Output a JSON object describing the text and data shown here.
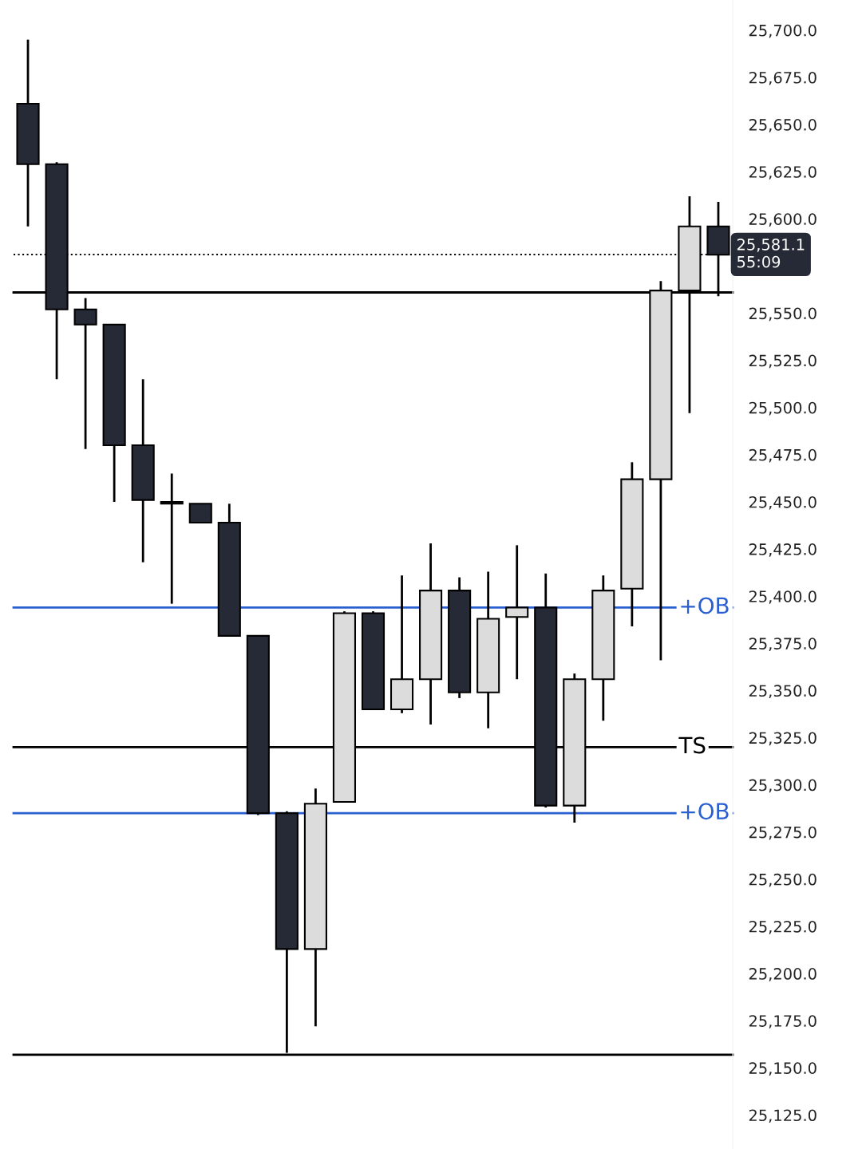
{
  "chart_data": {
    "type": "candlestick",
    "categories": [
      null,
      null,
      null,
      null,
      null,
      null,
      null,
      null,
      null,
      null,
      null,
      null,
      null,
      null,
      null,
      null,
      null,
      null,
      null,
      null,
      null,
      null,
      null,
      null,
      null
    ],
    "ohlc": [
      [
        25661,
        25695,
        25596,
        25629
      ],
      [
        25629,
        25630,
        25515,
        25552
      ],
      [
        25552,
        25558,
        25478,
        25544
      ],
      [
        25544,
        25544,
        25450,
        25480
      ],
      [
        25480,
        25515,
        25418,
        25451
      ],
      [
        25450,
        25465,
        25396,
        25449
      ],
      [
        25449,
        25449,
        25439,
        25439
      ],
      [
        25439,
        25449,
        25379,
        25379
      ],
      [
        25379,
        25379,
        25284,
        25285
      ],
      [
        25285,
        25286,
        25158,
        25213
      ],
      [
        25213,
        25298,
        25172,
        25290
      ],
      [
        25291,
        25392,
        25291,
        25391
      ],
      [
        25391,
        25392,
        25340,
        25340
      ],
      [
        25340,
        25411,
        25338,
        25356
      ],
      [
        25356,
        25428,
        25332,
        25403
      ],
      [
        25403,
        25410,
        25346,
        25349
      ],
      [
        25349,
        25413,
        25330,
        25388
      ],
      [
        25389,
        25427,
        25356,
        25394
      ],
      [
        25394,
        25412,
        25288,
        25289
      ],
      [
        25289,
        25359,
        25280,
        25356
      ],
      [
        25356,
        25411,
        25334,
        25403
      ],
      [
        25404,
        25471,
        25384,
        25462
      ],
      [
        25462,
        25567,
        25366,
        25562
      ],
      [
        25562,
        25612,
        25497,
        25596
      ],
      [
        25596,
        25609,
        25559,
        25581
      ]
    ],
    "colors": [
      "#262a36",
      "#262a36",
      "#262a36",
      "#262a36",
      "#262a36",
      "#262a36",
      "#262a36",
      "#262a36",
      "#262a36",
      "#262a36",
      "#dcdcdc",
      "#dcdcdc",
      "#262a36",
      "#dcdcdc",
      "#dcdcdc",
      "#262a36",
      "#dcdcdc",
      "#dcdcdc",
      "#262a36",
      "#dcdcdc",
      "#dcdcdc",
      "#dcdcdc",
      "#dcdcdc",
      "#dcdcdc",
      "#262a36"
    ],
    "ylim": [
      25107,
      25716
    ],
    "yticks": [
      {
        "value": 25125,
        "label": "25,125.0"
      },
      {
        "value": 25150,
        "label": "25,150.0"
      },
      {
        "value": 25175,
        "label": "25,175.0"
      },
      {
        "value": 25200,
        "label": "25,200.0"
      },
      {
        "value": 25225,
        "label": "25,225.0"
      },
      {
        "value": 25250,
        "label": "25,250.0"
      },
      {
        "value": 25275,
        "label": "25,275.0"
      },
      {
        "value": 25300,
        "label": "25,300.0"
      },
      {
        "value": 25325,
        "label": "25,325.0"
      },
      {
        "value": 25350,
        "label": "25,350.0"
      },
      {
        "value": 25375,
        "label": "25,375.0"
      },
      {
        "value": 25400,
        "label": "25,400.0"
      },
      {
        "value": 25425,
        "label": "25,425.0"
      },
      {
        "value": 25450,
        "label": "25,450.0"
      },
      {
        "value": 25475,
        "label": "25,475.0"
      },
      {
        "value": 25500,
        "label": "25,500.0"
      },
      {
        "value": 25525,
        "label": "25,525.0"
      },
      {
        "value": 25550,
        "label": "25,550.0"
      },
      {
        "value": 25600,
        "label": "25,600.0"
      },
      {
        "value": 25625,
        "label": "25,625.0"
      },
      {
        "value": 25650,
        "label": "25,650.0"
      },
      {
        "value": 25675,
        "label": "25,675.0"
      },
      {
        "value": 25700,
        "label": "25,700.0"
      }
    ],
    "ref_lines": [
      {
        "axis": "y",
        "value": 25561,
        "color": "#000000",
        "line_style": "solid"
      },
      {
        "axis": "y",
        "value": 25157,
        "color": "#000000",
        "line_style": "solid"
      },
      {
        "axis": "y",
        "value": 25394,
        "label": "+OB",
        "color": "#2a5fd0",
        "line_style": "solid"
      },
      {
        "axis": "y",
        "value": 25285,
        "label": "+OB",
        "color": "#2a5fd0",
        "line_style": "solid"
      },
      {
        "axis": "y",
        "value": 25320,
        "label": "TS",
        "color": "#000000",
        "line_style": "solid"
      },
      {
        "axis": "y",
        "value": 25581.1,
        "label": "25,581.1\n55:09",
        "color": "#000000",
        "line_style": "dotted"
      }
    ],
    "grid": false
  }
}
